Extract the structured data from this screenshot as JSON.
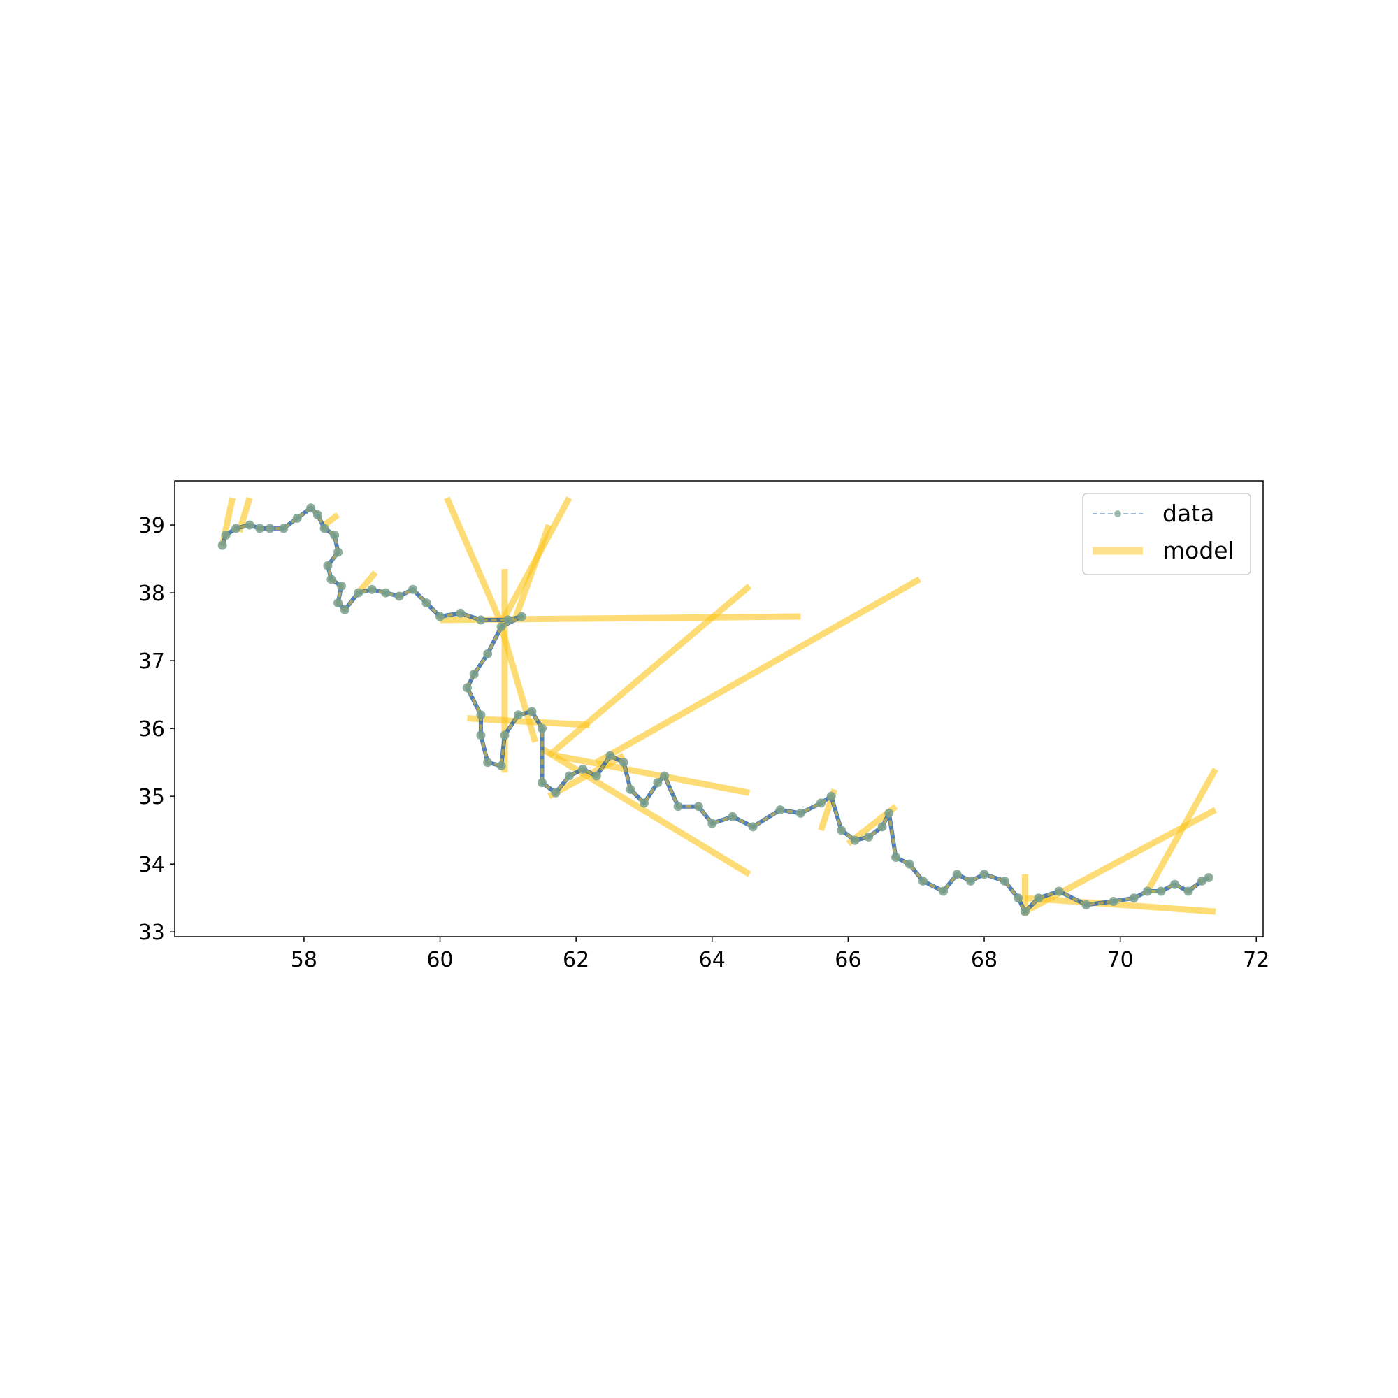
{
  "chart_data": {
    "type": "line",
    "title": "",
    "xlabel": "",
    "ylabel": "",
    "xlim": [
      56.1,
      72.1
    ],
    "ylim": [
      32.93,
      39.65
    ],
    "xticks": [
      58,
      60,
      62,
      64,
      66,
      68,
      70,
      72
    ],
    "yticks": [
      33,
      34,
      35,
      36,
      37,
      38,
      39
    ],
    "legend_position": "top-right",
    "colors": {
      "data_line": "#1f5fa8",
      "data_marker": "#7aa08a",
      "model": "#fcc419",
      "axis": "#000000"
    },
    "series": [
      {
        "name": "data",
        "style": "dashed line with circle markers",
        "x": [
          56.8,
          56.85,
          57.0,
          57.2,
          57.35,
          57.5,
          57.7,
          57.9,
          58.1,
          58.2,
          58.3,
          58.45,
          58.5,
          58.35,
          58.4,
          58.55,
          58.5,
          58.6,
          58.8,
          59.0,
          59.2,
          59.4,
          59.6,
          59.8,
          60.0,
          60.3,
          60.6,
          61.0,
          61.2,
          60.9,
          60.7,
          60.5,
          60.4,
          60.6,
          60.6,
          60.7,
          60.9,
          60.95,
          61.15,
          61.35,
          61.5,
          61.5,
          61.7,
          61.9,
          62.1,
          62.3,
          62.5,
          62.7,
          62.8,
          63.0,
          63.2,
          63.3,
          63.5,
          63.8,
          64.0,
          64.3,
          64.6,
          65.0,
          65.3,
          65.6,
          65.75,
          65.9,
          66.1,
          66.3,
          66.5,
          66.6,
          66.7,
          66.9,
          67.1,
          67.4,
          67.6,
          67.8,
          68.0,
          68.3,
          68.5,
          68.6,
          68.8,
          69.1,
          69.5,
          69.9,
          70.2,
          70.4,
          70.6,
          70.8,
          71.0,
          71.2,
          71.3
        ],
        "y": [
          38.7,
          38.85,
          38.95,
          39.0,
          38.95,
          38.95,
          38.95,
          39.1,
          39.25,
          39.15,
          38.95,
          38.85,
          38.6,
          38.4,
          38.2,
          38.1,
          37.85,
          37.75,
          38.0,
          38.05,
          38.0,
          37.95,
          38.05,
          37.85,
          37.65,
          37.7,
          37.6,
          37.6,
          37.65,
          37.5,
          37.1,
          36.8,
          36.6,
          36.2,
          35.9,
          35.5,
          35.45,
          35.9,
          36.2,
          36.25,
          36.0,
          35.2,
          35.05,
          35.3,
          35.4,
          35.3,
          35.6,
          35.5,
          35.1,
          34.9,
          35.2,
          35.3,
          34.85,
          34.85,
          34.6,
          34.7,
          34.55,
          34.8,
          34.75,
          34.9,
          35.0,
          34.5,
          34.35,
          34.4,
          34.55,
          34.75,
          34.1,
          34.0,
          33.75,
          33.6,
          33.85,
          33.75,
          33.85,
          33.75,
          33.5,
          33.3,
          33.5,
          33.6,
          33.4,
          33.45,
          33.5,
          33.6,
          33.6,
          33.7,
          33.6,
          33.75,
          33.8
        ]
      },
      {
        "name": "model",
        "style": "thick translucent line segments",
        "segments": [
          [
            56.8,
            38.7,
            56.95,
            39.4
          ],
          [
            57.05,
            38.9,
            57.2,
            39.4
          ],
          [
            58.3,
            39.0,
            58.5,
            39.15
          ],
          [
            58.8,
            38.0,
            59.05,
            38.3
          ],
          [
            60.1,
            39.4,
            60.9,
            37.55
          ],
          [
            60.9,
            37.55,
            61.9,
            39.4
          ],
          [
            61.1,
            37.6,
            61.6,
            39.0
          ],
          [
            60.0,
            37.6,
            65.3,
            37.65
          ],
          [
            60.95,
            38.35,
            60.95,
            35.35
          ],
          [
            60.4,
            36.15,
            62.2,
            36.05
          ],
          [
            60.9,
            37.5,
            61.4,
            35.8
          ],
          [
            61.6,
            35.6,
            64.55,
            38.1
          ],
          [
            62.3,
            35.5,
            67.05,
            38.2
          ],
          [
            61.7,
            35.6,
            64.55,
            35.05
          ],
          [
            61.5,
            35.7,
            64.55,
            33.85
          ],
          [
            61.6,
            35.0,
            62.7,
            35.6
          ],
          [
            65.6,
            34.5,
            65.8,
            35.1
          ],
          [
            66.0,
            34.3,
            66.7,
            34.85
          ],
          [
            68.6,
            33.85,
            68.6,
            33.25
          ],
          [
            68.6,
            33.3,
            71.4,
            34.8
          ],
          [
            68.6,
            33.5,
            71.4,
            33.3
          ],
          [
            70.4,
            33.6,
            71.4,
            35.4
          ]
        ]
      }
    ]
  }
}
